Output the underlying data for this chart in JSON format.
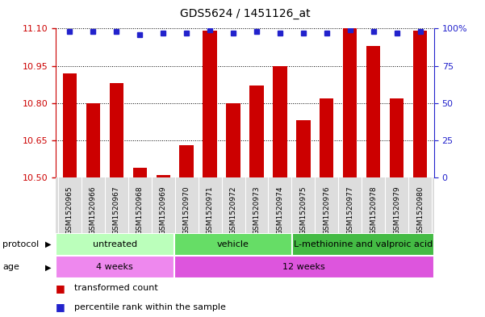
{
  "title": "GDS5624 / 1451126_at",
  "samples": [
    "GSM1520965",
    "GSM1520966",
    "GSM1520967",
    "GSM1520968",
    "GSM1520969",
    "GSM1520970",
    "GSM1520971",
    "GSM1520972",
    "GSM1520973",
    "GSM1520974",
    "GSM1520975",
    "GSM1520976",
    "GSM1520977",
    "GSM1520978",
    "GSM1520979",
    "GSM1520980"
  ],
  "red_values": [
    10.92,
    10.8,
    10.88,
    10.54,
    10.51,
    10.63,
    11.09,
    10.8,
    10.87,
    10.95,
    10.73,
    10.82,
    11.1,
    11.03,
    10.82,
    11.09
  ],
  "blue_values": [
    98,
    98,
    98,
    96,
    97,
    97,
    99,
    97,
    98,
    97,
    97,
    97,
    99,
    98,
    97,
    98
  ],
  "ylim_left": [
    10.5,
    11.1
  ],
  "ylim_right": [
    0,
    100
  ],
  "yticks_left": [
    10.5,
    10.65,
    10.8,
    10.95,
    11.1
  ],
  "yticks_right": [
    0,
    25,
    50,
    75,
    100
  ],
  "bar_color": "#cc0000",
  "dot_color": "#2222cc",
  "protocols": [
    {
      "label": "untreated",
      "start": 0,
      "end": 5,
      "color": "#bbffbb"
    },
    {
      "label": "vehicle",
      "start": 5,
      "end": 10,
      "color": "#66dd66"
    },
    {
      "label": "L-methionine and valproic acid",
      "start": 10,
      "end": 16,
      "color": "#44bb44"
    }
  ],
  "ages": [
    {
      "label": "4 weeks",
      "start": 0,
      "end": 5,
      "color": "#ee88ee"
    },
    {
      "label": "12 weeks",
      "start": 5,
      "end": 16,
      "color": "#dd55dd"
    }
  ],
  "legend_red": "transformed count",
  "legend_blue": "percentile rank within the sample",
  "left_axis_color": "#cc0000",
  "right_axis_color": "#2222cc"
}
